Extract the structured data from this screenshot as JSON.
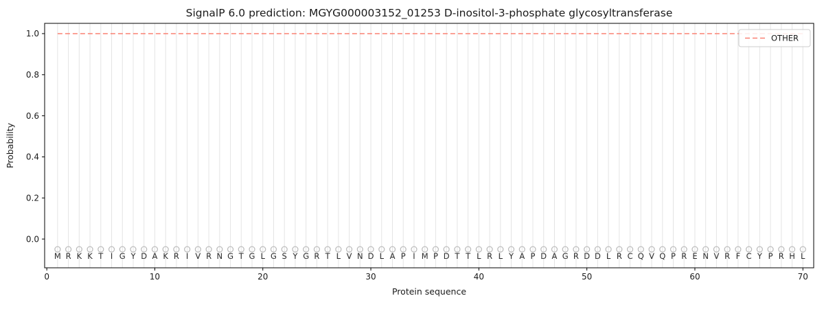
{
  "chart_data": {
    "type": "line",
    "title": "SignalP 6.0 prediction: MGYG000003152_01253 D-inositol-3-phosphate glycosyltransferase",
    "xlabel": "Protein sequence",
    "ylabel": "Probability",
    "xlim": [
      -0.2,
      71
    ],
    "ylim": [
      -0.14,
      1.05
    ],
    "xticks": [
      0,
      10,
      20,
      30,
      40,
      50,
      60,
      70
    ],
    "yticks": [
      0.0,
      0.2,
      0.4,
      0.6,
      0.8,
      1.0
    ],
    "grid": {
      "vertical_per_residue": true,
      "color": "#e4e4e4"
    },
    "sequence": "MRKKTIGYDAKRIVRNGTGLGSYGRTLVNDLAPIMPDTTLRLYAPDAGRDDLRCQVQPRENVRFCYPRHL",
    "sequence_length": 70,
    "series": [
      {
        "name": "OTHER",
        "linestyle": "dashed",
        "color": "#fa8072",
        "y_value": 1.0,
        "x_range": [
          1,
          70
        ]
      }
    ],
    "residue_markers": {
      "shape": "open-circle",
      "color": "#b9b9b9",
      "y": -0.05
    },
    "legend": {
      "position": "upper right",
      "entries": [
        {
          "label": "OTHER",
          "color": "#fa8072",
          "linestyle": "dashed"
        }
      ]
    }
  }
}
